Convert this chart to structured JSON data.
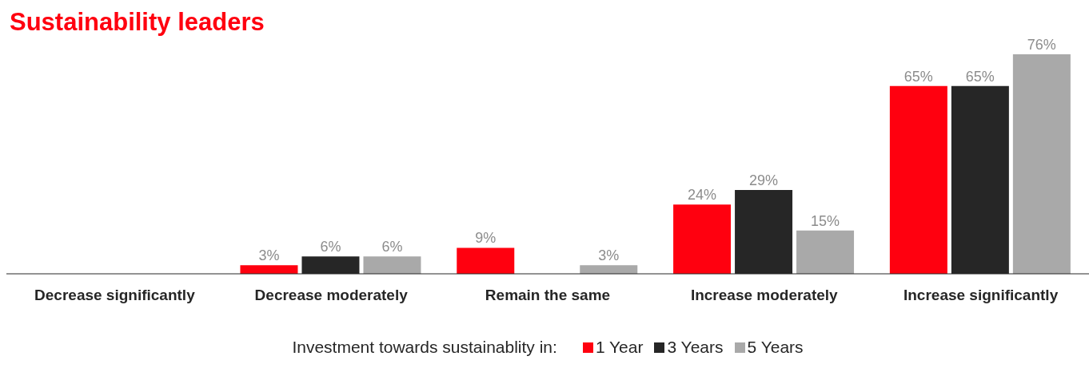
{
  "chart_data": {
    "type": "bar",
    "title": "Sustainability leaders",
    "legend_title": "Investment towards sustainablity in:",
    "categories": [
      "Decrease significantly",
      "Decrease moderately",
      "Remain the same",
      "Increase moderately",
      "Increase significantly"
    ],
    "series": [
      {
        "name": "1 Year",
        "color": "#ff000f",
        "values": [
          null,
          3,
          9,
          24,
          65
        ],
        "value_labels": [
          null,
          "3%",
          "9%",
          "24%",
          "65%"
        ]
      },
      {
        "name": "3 Years",
        "color": "#262626",
        "values": [
          null,
          6,
          null,
          29,
          65
        ],
        "value_labels": [
          null,
          "6%",
          null,
          "29%",
          "65%"
        ]
      },
      {
        "name": "5 Years",
        "color": "#a9a9a9",
        "values": [
          null,
          6,
          3,
          15,
          76
        ],
        "value_labels": [
          null,
          "6%",
          "3%",
          "15%",
          "76%"
        ]
      }
    ],
    "legend": "bottom"
  }
}
